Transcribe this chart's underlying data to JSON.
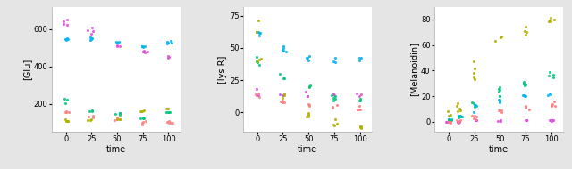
{
  "background_color": "#e5e5e5",
  "panel_bg": "#ffffff",
  "title1": "[Glu]",
  "title2": "[lys R]",
  "title3": "[Melanoidin]",
  "xlabel": "time",
  "time_ticks": [
    0,
    25,
    50,
    75,
    100
  ],
  "colors": {
    "cyan": "#00b4f0",
    "magenta": "#e050e0",
    "green": "#00c87a",
    "salmon": "#ff8080",
    "olive": "#b0b000"
  },
  "panel1": {
    "ylim": [
      50,
      720
    ],
    "yticks": [
      200,
      400,
      600
    ],
    "series": {
      "cyan": {
        "t": [
          0,
          25,
          50,
          75,
          100
        ],
        "y": [
          548,
          552,
          528,
          508,
          528
        ],
        "spread": [
          4,
          4,
          4,
          4,
          4
        ]
      },
      "magenta": {
        "t": [
          0,
          25,
          50,
          75,
          100
        ],
        "y": [
          638,
          588,
          508,
          475,
          450
        ],
        "spread": [
          15,
          10,
          5,
          8,
          5
        ]
      },
      "green": {
        "t": [
          0,
          25,
          50,
          75,
          100
        ],
        "y": [
          215,
          163,
          148,
          125,
          153
        ],
        "spread": [
          18,
          5,
          5,
          5,
          5
        ]
      },
      "salmon": {
        "t": [
          0,
          25,
          50,
          75,
          100
        ],
        "y": [
          158,
          133,
          118,
          98,
          98
        ],
        "spread": [
          5,
          5,
          5,
          5,
          5
        ]
      },
      "olive": {
        "t": [
          0,
          25,
          50,
          75,
          100
        ],
        "y": [
          108,
          113,
          118,
          163,
          173
        ],
        "spread": [
          5,
          5,
          5,
          5,
          5
        ]
      }
    }
  },
  "panel2": {
    "ylim": [
      -15,
      82
    ],
    "yticks": [
      0,
      25,
      50,
      75
    ],
    "series": {
      "cyan": {
        "t": [
          0,
          25,
          50,
          75,
          100
        ],
        "y": [
          61,
          49,
          42,
          41,
          41
        ],
        "spread": [
          1.5,
          1.5,
          1.5,
          1.5,
          1.5
        ]
      },
      "magenta": {
        "t": [
          0,
          25,
          50,
          75,
          100
        ],
        "y": [
          15,
          13,
          14,
          14,
          15
        ],
        "spread": [
          1,
          1,
          1,
          1,
          1
        ]
      },
      "green": {
        "t": [
          0,
          25,
          50,
          75,
          100
        ],
        "y": [
          41,
          27,
          21,
          11,
          9
        ],
        "spread": [
          3,
          2,
          2,
          1,
          1
        ]
      },
      "salmon": {
        "t": [
          0,
          25,
          50,
          75,
          100
        ],
        "y": [
          14,
          10,
          6,
          4,
          3
        ],
        "spread": [
          1,
          1,
          1,
          1,
          1
        ]
      },
      "olive": {
        "t": [
          0,
          25,
          50,
          75,
          100
        ],
        "y": [
          55,
          12,
          -1,
          -9,
          -12
        ],
        "spread": [
          12,
          4,
          2,
          2,
          1
        ]
      }
    }
  },
  "panel3": {
    "ylim": [
      -8,
      90
    ],
    "yticks": [
      0,
      20,
      40,
      60,
      80
    ],
    "series": {
      "cyan": {
        "t": [
          0,
          10,
          25,
          50,
          75,
          100
        ],
        "y": [
          2,
          5,
          10,
          18,
          20,
          21
        ],
        "spread": [
          0.5,
          1,
          2,
          2,
          1,
          1
        ]
      },
      "magenta": {
        "t": [
          0,
          10,
          25,
          50,
          75,
          100
        ],
        "y": [
          0,
          0,
          1,
          1,
          1,
          1
        ],
        "spread": [
          0.3,
          0.3,
          0.3,
          0.3,
          0.3,
          0.3
        ]
      },
      "green": {
        "t": [
          0,
          10,
          25,
          50,
          75,
          100
        ],
        "y": [
          1,
          4,
          11,
          25,
          31,
          37
        ],
        "spread": [
          0.5,
          1,
          2,
          2,
          2,
          2
        ]
      },
      "salmon": {
        "t": [
          0,
          10,
          25,
          50,
          75,
          100
        ],
        "y": [
          0,
          1,
          3,
          9,
          11,
          13
        ],
        "spread": [
          0.3,
          0.5,
          1,
          1,
          1,
          1
        ]
      },
      "olive": {
        "t": [
          0,
          10,
          25,
          50,
          75,
          100
        ],
        "y": [
          5,
          15,
          40,
          63,
          72,
          79
        ],
        "spread": [
          2,
          4,
          8,
          3,
          3,
          2
        ]
      }
    }
  }
}
